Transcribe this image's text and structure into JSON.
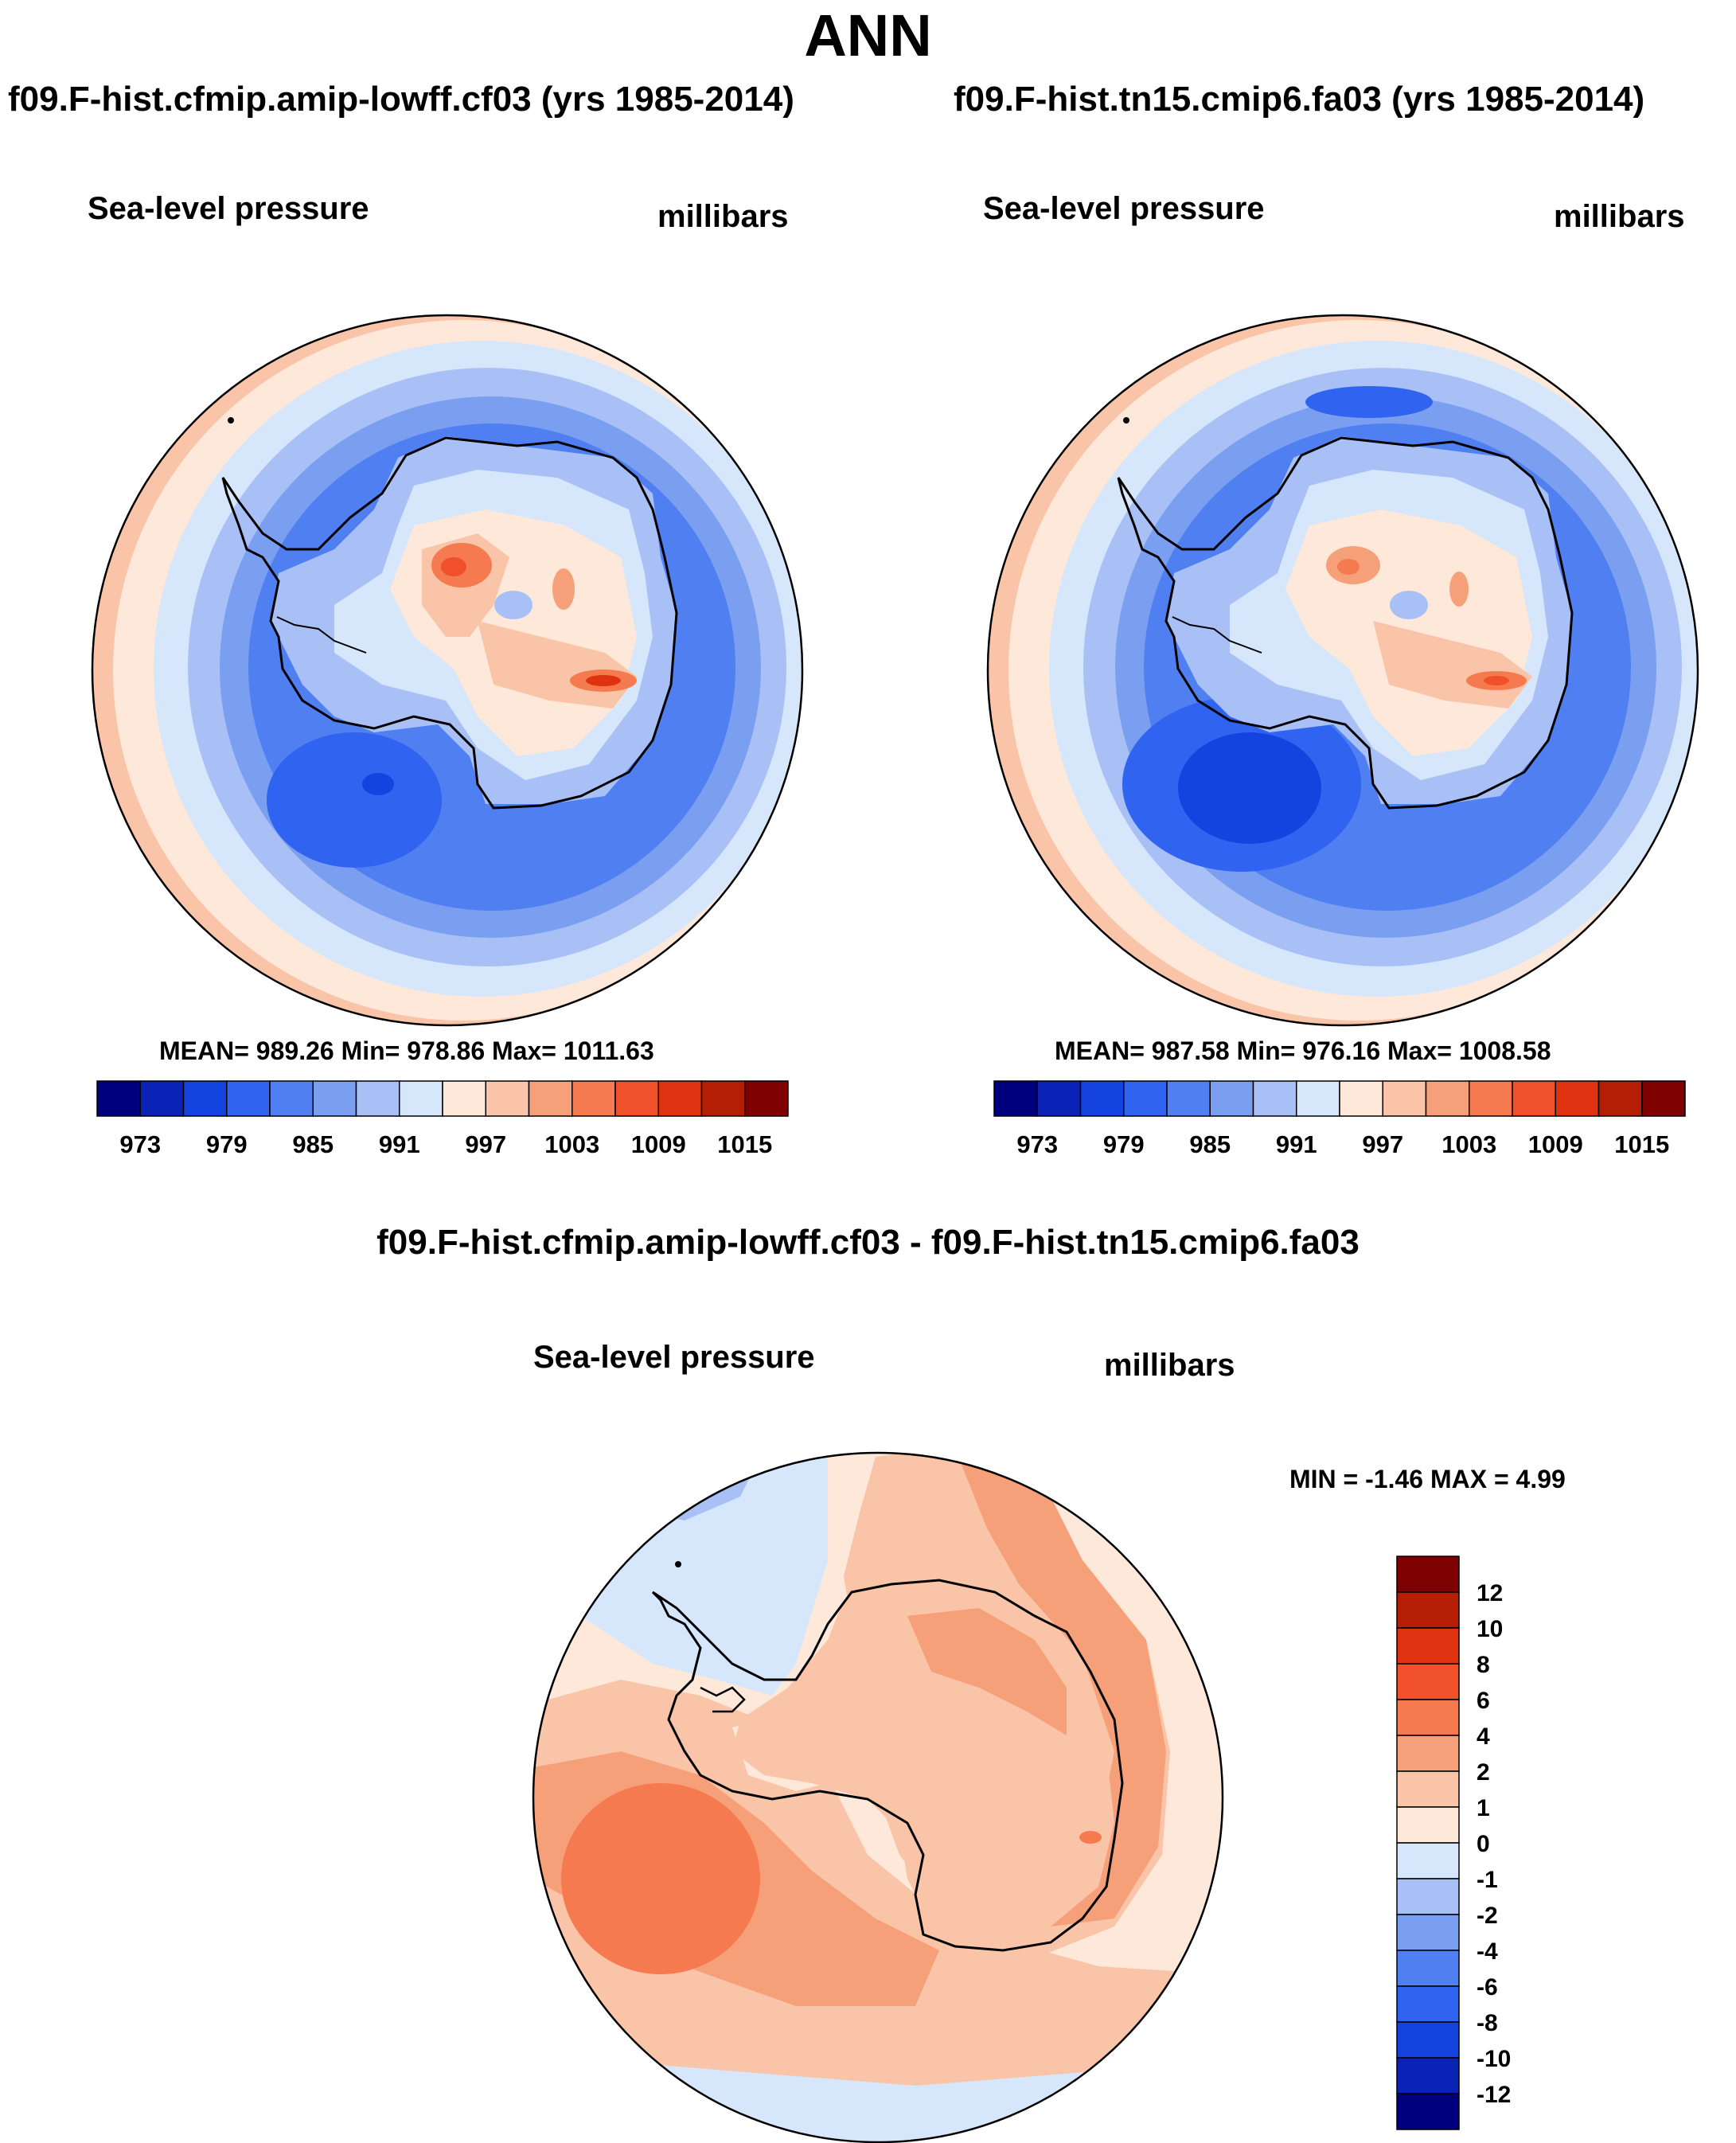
{
  "title": "ANN",
  "panels": [
    {
      "run_title": "f09.F-hist.cfmip.amip-lowff.cf03 (yrs 1985-2014)",
      "variable": "Sea-level pressure",
      "units": "millibars",
      "stats": "MEAN= 989.26  Min= 978.86  Max= 1011.63"
    },
    {
      "run_title": "f09.F-hist.tn15.cmip6.fa03 (yrs 1985-2014)",
      "variable": "Sea-level pressure",
      "units": "millibars",
      "stats": "MEAN= 987.58  Min= 976.16  Max= 1008.58"
    }
  ],
  "diff_panel": {
    "title": "f09.F-hist.cfmip.amip-lowff.cf03 - f09.F-hist.tn15.cmip6.fa03",
    "variable": "Sea-level pressure",
    "units": "millibars",
    "stats": "MIN =  -1.46 MAX =   4.99"
  },
  "chart_data": [
    {
      "type": "heatmap",
      "projection": "south-polar-stereographic",
      "title": "f09.F-hist.cfmip.amip-lowff.cf03 (yrs 1985-2014)",
      "variable": "Sea-level pressure",
      "units": "millibars",
      "mean": 989.26,
      "min": 978.86,
      "max": 1011.63,
      "colorbar": {
        "orientation": "horizontal",
        "levels": [
          970,
          973,
          976,
          979,
          982,
          985,
          988,
          991,
          994,
          997,
          1000,
          1003,
          1006,
          1009,
          1012,
          1015,
          1018
        ],
        "tick_labels": [
          "973",
          "979",
          "985",
          "991",
          "997",
          "1003",
          "1009",
          "1015"
        ],
        "colors": [
          "#00007f",
          "#0a22b5",
          "#1443e0",
          "#2f63f0",
          "#4f7ff0",
          "#7a9ef0",
          "#a8c0f5",
          "#d6e6fb",
          "#fde8da",
          "#f9c4a8",
          "#f6a07a",
          "#f57a4f",
          "#f0512a",
          "#de3210",
          "#b31e05",
          "#7f0000"
        ]
      }
    },
    {
      "type": "heatmap",
      "projection": "south-polar-stereographic",
      "title": "f09.F-hist.tn15.cmip6.fa03 (yrs 1985-2014)",
      "variable": "Sea-level pressure",
      "units": "millibars",
      "mean": 987.58,
      "min": 976.16,
      "max": 1008.58,
      "colorbar": {
        "orientation": "horizontal",
        "levels": [
          970,
          973,
          976,
          979,
          982,
          985,
          988,
          991,
          994,
          997,
          1000,
          1003,
          1006,
          1009,
          1012,
          1015,
          1018
        ],
        "tick_labels": [
          "973",
          "979",
          "985",
          "991",
          "997",
          "1003",
          "1009",
          "1015"
        ],
        "colors": [
          "#00007f",
          "#0a22b5",
          "#1443e0",
          "#2f63f0",
          "#4f7ff0",
          "#7a9ef0",
          "#a8c0f5",
          "#d6e6fb",
          "#fde8da",
          "#f9c4a8",
          "#f6a07a",
          "#f57a4f",
          "#f0512a",
          "#de3210",
          "#b31e05",
          "#7f0000"
        ]
      }
    },
    {
      "type": "heatmap",
      "projection": "south-polar-stereographic",
      "title": "f09.F-hist.cfmip.amip-lowff.cf03 - f09.F-hist.tn15.cmip6.fa03",
      "variable": "Sea-level pressure",
      "units": "millibars",
      "min": -1.46,
      "max": 4.99,
      "colorbar": {
        "orientation": "vertical",
        "tick_labels": [
          "12",
          "10",
          "8",
          "6",
          "4",
          "2",
          "1",
          "0",
          "-1",
          "-2",
          "-4",
          "-6",
          "-8",
          "-10",
          "-12"
        ],
        "colors": [
          "#7f0000",
          "#b31e05",
          "#de3210",
          "#f0512a",
          "#f57a4f",
          "#f6a07a",
          "#f9c4a8",
          "#fde8da",
          "#d6e6fb",
          "#a8c0f5",
          "#7a9ef0",
          "#4f7ff0",
          "#2f63f0",
          "#1443e0",
          "#0a22b5",
          "#00007f"
        ]
      }
    }
  ]
}
